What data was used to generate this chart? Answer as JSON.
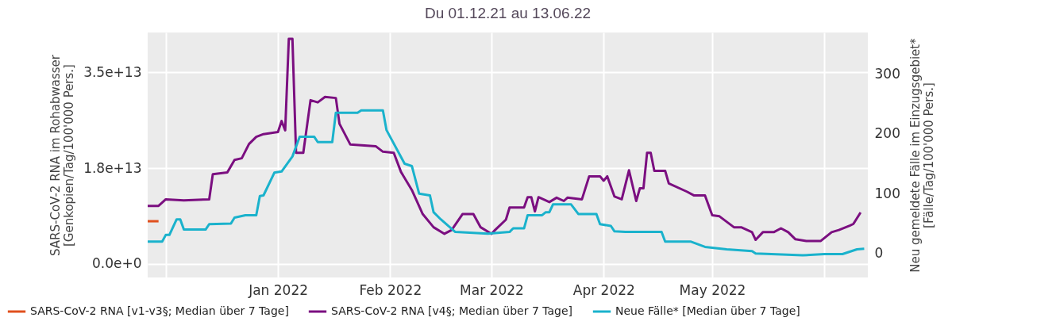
{
  "chart_data": {
    "type": "line",
    "title": "Du 01.12.21 au 13.06.22",
    "ylabel": "SARS-CoV-2 RNA im Rohabwasser\n[Genkopien/Tag/100'000 Pers.]",
    "y2label": "Neu gemeldete Fälle im Einzugsgebiet*\n[Fälle/Tag/100'000 Pers.]",
    "xlim": [
      "2021-11-26",
      "2022-06-13"
    ],
    "xticks": [
      {
        "value": "2021-12-01",
        "label": null
      },
      {
        "value": "2022-01-01",
        "label": "Jan 2022"
      },
      {
        "value": "2022-02-01",
        "label": "Feb 2022"
      },
      {
        "value": "2022-03-01",
        "label": "Mar 2022"
      },
      {
        "value": "2022-04-01",
        "label": "Apr 2022"
      },
      {
        "value": "2022-05-01",
        "label": "May 2022"
      },
      {
        "value": "2022-06-01",
        "label": null
      }
    ],
    "ylim": [
      -2470000000000.0,
      42260000000000.0
    ],
    "yticks": [
      {
        "value": 0,
        "label": "0.0e+0"
      },
      {
        "value": 17500000000000.0,
        "label": "1.8e+13"
      },
      {
        "value": 35000000000000.0,
        "label": "3.5e+13"
      }
    ],
    "y2lim": [
      -40,
      369
    ],
    "y2ticks": [
      0,
      100,
      200,
      300
    ],
    "grid": true,
    "legend": "bottom",
    "marker": "none",
    "line_style": "solid",
    "series": [
      {
        "name": "SARS-CoV-2 RNA [v1-v3§; Median über 7 Tage]",
        "color": "#e0501e",
        "x": [
          "2021-11-26",
          "2021-11-29"
        ],
        "values": [
          7800000000000.0,
          7800000000000.0
        ]
      },
      {
        "name": "SARS-CoV-2 RNA [v4§; Median über 7 Tage]",
        "color": "#7b0f80",
        "x": [
          "2021-11-26",
          "2021-11-29",
          "2021-12-01",
          "2021-12-06",
          "2021-12-13",
          "2021-12-14",
          "2021-12-18",
          "2021-12-20",
          "2021-12-22",
          "2021-12-24",
          "2021-12-26",
          "2021-12-28",
          "2022-01-01",
          "2022-01-02",
          "2022-01-03",
          "2022-01-04",
          "2022-01-05",
          "2022-01-06",
          "2022-01-08",
          "2022-01-10",
          "2022-01-12",
          "2022-01-14",
          "2022-01-17",
          "2022-01-18",
          "2022-01-21",
          "2022-01-28",
          "2022-01-30",
          "2022-02-02",
          "2022-02-04",
          "2022-02-07",
          "2022-02-10",
          "2022-02-13",
          "2022-02-16",
          "2022-02-18",
          "2022-02-21",
          "2022-02-24",
          "2022-02-26",
          "2022-03-01",
          "2022-03-02",
          "2022-03-05",
          "2022-03-06",
          "2022-03-10",
          "2022-03-11",
          "2022-03-12",
          "2022-03-13",
          "2022-03-14",
          "2022-03-17",
          "2022-03-19",
          "2022-03-21",
          "2022-03-22",
          "2022-03-26",
          "2022-03-28",
          "2022-03-31",
          "2022-04-01",
          "2022-04-02",
          "2022-04-04",
          "2022-04-06",
          "2022-04-08",
          "2022-04-10",
          "2022-04-11",
          "2022-04-12",
          "2022-04-13",
          "2022-04-14",
          "2022-04-15",
          "2022-04-18",
          "2022-04-19",
          "2022-04-24",
          "2022-04-26",
          "2022-04-29",
          "2022-05-01",
          "2022-05-03",
          "2022-05-07",
          "2022-05-09",
          "2022-05-12",
          "2022-05-13",
          "2022-05-15",
          "2022-05-18",
          "2022-05-20",
          "2022-05-22",
          "2022-05-24",
          "2022-05-27",
          "2022-05-31",
          "2022-06-03",
          "2022-06-05",
          "2022-06-08",
          "2022-06-09",
          "2022-06-11"
        ],
        "values": [
          10600000000000.0,
          10600000000000.0,
          11800000000000.0,
          11600000000000.0,
          11800000000000.0,
          16400000000000.0,
          16700000000000.0,
          19000000000000.0,
          19300000000000.0,
          21900000000000.0,
          23200000000000.0,
          23700000000000.0,
          24100000000000.0,
          26100000000000.0,
          24400000000000.0,
          41100000000000.0,
          41100000000000.0,
          20300000000000.0,
          20300000000000.0,
          29900000000000.0,
          29500000000000.0,
          30500000000000.0,
          30300000000000.0,
          25600000000000.0,
          21800000000000.0,
          21500000000000.0,
          20500000000000.0,
          20300000000000.0,
          16800000000000.0,
          13500000000000.0,
          9100000000000.0,
          6700000000000.0,
          5500000000000.0,
          6200000000000.0,
          9100000000000.0,
          9100000000000.0,
          6700000000000.0,
          5500000000000.0,
          6200000000000.0,
          8100000000000.0,
          10300000000000.0,
          10300000000000.0,
          12200000000000.0,
          12200000000000.0,
          9600000000000.0,
          12200000000000.0,
          11300000000000.0,
          12100000000000.0,
          11500000000000.0,
          12100000000000.0,
          11800000000000.0,
          16000000000000.0,
          16000000000000.0,
          15200000000000.0,
          16000000000000.0,
          12300000000000.0,
          11800000000000.0,
          17100000000000.0,
          11500000000000.0,
          13800000000000.0,
          13800000000000.0,
          20300000000000.0,
          20300000000000.0,
          17000000000000.0,
          17000000000000.0,
          14700000000000.0,
          13200000000000.0,
          12500000000000.0,
          12500000000000.0,
          8900000000000.0,
          8700000000000.0,
          6700000000000.0,
          6700000000000.0,
          5800000000000.0,
          4400000000000.0,
          5800000000000.0,
          5800000000000.0,
          6500000000000.0,
          5800000000000.0,
          4500000000000.0,
          4200000000000.0,
          4200000000000.0,
          5800000000000.0,
          6200000000000.0,
          7000000000000.0,
          7300000000000.0,
          9400000000000.0
        ]
      },
      {
        "name": "Neue Fälle* [Median über 7 Tage]",
        "color": "#1ab2cc",
        "axis": "y2",
        "x": [
          "2021-11-26",
          "2021-11-30",
          "2021-12-01",
          "2021-12-02",
          "2021-12-04",
          "2021-12-05",
          "2021-12-06",
          "2021-12-12",
          "2021-12-13",
          "2021-12-19",
          "2021-12-20",
          "2021-12-23",
          "2021-12-26",
          "2021-12-27",
          "2021-12-28",
          "2021-12-31",
          "2022-01-02",
          "2022-01-05",
          "2022-01-07",
          "2022-01-11",
          "2022-01-12",
          "2022-01-16",
          "2022-01-17",
          "2022-01-23",
          "2022-01-24",
          "2022-01-30",
          "2022-01-31",
          "2022-02-05",
          "2022-02-07",
          "2022-02-09",
          "2022-02-12",
          "2022-02-13",
          "2022-02-15",
          "2022-02-19",
          "2022-02-28",
          "2022-03-06",
          "2022-03-07",
          "2022-03-10",
          "2022-03-11",
          "2022-03-15",
          "2022-03-16",
          "2022-03-17",
          "2022-03-18",
          "2022-03-23",
          "2022-03-25",
          "2022-03-30",
          "2022-03-31",
          "2022-04-03",
          "2022-04-04",
          "2022-04-07",
          "2022-04-17",
          "2022-04-18",
          "2022-04-25",
          "2022-04-29",
          "2022-05-05",
          "2022-05-12",
          "2022-05-13",
          "2022-05-26",
          "2022-06-01",
          "2022-06-06",
          "2022-06-08",
          "2022-06-10",
          "2022-06-12"
        ],
        "values": [
          20,
          20,
          31,
          31,
          57,
          57,
          40,
          40,
          49,
          50,
          60,
          64,
          64,
          96,
          97,
          135,
          137,
          162,
          195,
          195,
          186,
          186,
          235,
          235,
          239,
          239,
          206,
          150,
          146,
          100,
          97,
          69,
          57,
          36,
          33,
          36,
          42,
          42,
          64,
          64,
          69,
          69,
          82,
          82,
          66,
          66,
          49,
          46,
          37,
          36,
          36,
          20,
          20,
          11,
          7,
          4,
          0,
          -3,
          -1,
          -1,
          3,
          7,
          8
        ]
      }
    ]
  }
}
